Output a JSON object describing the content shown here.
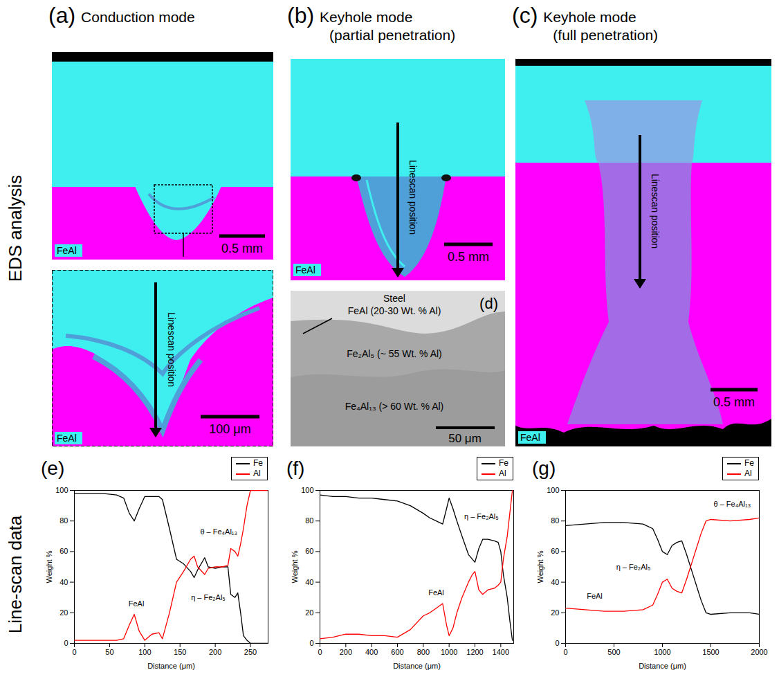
{
  "row_labels": [
    "EDS analysis",
    "Line-scan data"
  ],
  "panels": [
    {
      "letter": "(a)",
      "title": "Conduction mode",
      "scale_bar": "0.5 mm",
      "element_label": "FeAl",
      "inset": {
        "scale_bar": "100 μm",
        "element_label": "FeAl",
        "arrow_label": "Linescan position"
      }
    },
    {
      "letter": "(b)",
      "title": "Keyhole mode",
      "subtitle": "(partial penetration)",
      "scale_bar": "0.5 mm",
      "element_label": "FeAl",
      "arrow_label": "Linescan position"
    },
    {
      "letter": "(c)",
      "title": "Keyhole mode",
      "subtitle": "(full penetration)",
      "scale_bar": "0.5 mm",
      "element_label": "FeAl",
      "arrow_label": "Linescan position"
    },
    {
      "letter": "(d)",
      "scale_bar": "50 μm",
      "labels": [
        "Steel",
        "FeAl (20-30 Wt. % Al)",
        "Fe₂Al₅ (~ 55 Wt. % Al)",
        "Fe₄Al₁₃ (> 60 Wt. % Al)"
      ]
    }
  ],
  "chart_data": [
    {
      "type": "line",
      "panel": "(e)",
      "xlabel": "Distance (μm)",
      "ylabel": "Weight %",
      "xlim": [
        0,
        275
      ],
      "xticks": [
        0,
        50,
        100,
        150,
        200,
        250
      ],
      "ylim": [
        0,
        100
      ],
      "yticks": [
        0,
        20,
        40,
        60,
        80,
        100
      ],
      "legend": "top-right",
      "x": [
        0,
        20,
        40,
        60,
        70,
        78,
        85,
        92,
        100,
        110,
        120,
        125,
        135,
        145,
        155,
        165,
        170,
        175,
        185,
        190,
        200,
        210,
        218,
        222,
        228,
        232,
        236,
        240,
        245,
        250,
        260,
        275
      ],
      "series": [
        {
          "name": "Fe",
          "color": "#000000",
          "values": [
            98,
            98,
            98,
            97,
            95,
            85,
            80,
            88,
            96,
            96,
            96,
            94,
            75,
            55,
            52,
            47,
            43,
            48,
            56,
            50,
            49,
            50,
            50,
            32,
            30,
            33,
            20,
            5,
            2,
            0,
            0,
            0
          ]
        },
        {
          "name": "Al",
          "color": "#ff0000",
          "values": [
            2,
            2,
            2,
            2,
            3,
            12,
            19,
            8,
            2,
            6,
            7,
            3,
            20,
            40,
            47,
            55,
            57,
            50,
            45,
            49,
            50,
            50,
            51,
            62,
            60,
            57,
            65,
            75,
            90,
            100,
            100,
            100
          ]
        }
      ],
      "annotations": [
        {
          "text": "FeAl",
          "x": 88,
          "y": 26
        },
        {
          "text": "η – Fe₂Al₅",
          "x": 190,
          "y": 30
        },
        {
          "text": "θ – Fe₄Al₁₃",
          "x": 205,
          "y": 73
        }
      ]
    },
    {
      "type": "line",
      "panel": "(f)",
      "xlabel": "Distance (μm)",
      "ylabel": "Weight %",
      "xlim": [
        0,
        1500
      ],
      "xticks": [
        0,
        200,
        400,
        600,
        800,
        1000,
        1200,
        1400
      ],
      "ylim": [
        0,
        100
      ],
      "yticks": [
        0,
        20,
        40,
        60,
        80,
        100
      ],
      "legend": "top-right",
      "x": [
        0,
        100,
        200,
        300,
        400,
        500,
        600,
        700,
        800,
        850,
        900,
        950,
        980,
        1000,
        1030,
        1060,
        1100,
        1150,
        1180,
        1200,
        1230,
        1260,
        1300,
        1350,
        1380,
        1400,
        1420,
        1450,
        1470,
        1490
      ],
      "series": [
        {
          "name": "Fe",
          "color": "#000000",
          "values": [
            97,
            96,
            96,
            95,
            95,
            94,
            93,
            90,
            85,
            82,
            80,
            78,
            88,
            95,
            88,
            80,
            70,
            58,
            55,
            53,
            62,
            68,
            68,
            67,
            66,
            60,
            45,
            30,
            15,
            2
          ]
        },
        {
          "name": "Al",
          "color": "#ff0000",
          "values": [
            3,
            4,
            6,
            6,
            5,
            5,
            4,
            9,
            18,
            20,
            23,
            26,
            12,
            5,
            10,
            20,
            30,
            40,
            45,
            47,
            35,
            32,
            35,
            36,
            38,
            40,
            55,
            70,
            85,
            100
          ]
        }
      ],
      "annotations": [
        {
          "text": "FeAl",
          "x": 900,
          "y": 33
        },
        {
          "text": "η – Fe₂Al₅",
          "x": 1250,
          "y": 83
        }
      ]
    },
    {
      "type": "line",
      "panel": "(g)",
      "xlabel": "Distance (μm)",
      "ylabel": "Weight %",
      "xlim": [
        0,
        2000
      ],
      "xticks": [
        0,
        500,
        1000,
        1500,
        2000
      ],
      "ylim": [
        0,
        100
      ],
      "yticks": [
        0,
        20,
        40,
        60,
        80,
        100
      ],
      "legend": "top-right",
      "x": [
        0,
        200,
        400,
        600,
        800,
        900,
        950,
        1000,
        1050,
        1100,
        1150,
        1200,
        1250,
        1300,
        1350,
        1400,
        1450,
        1500,
        1700,
        1900,
        2000
      ],
      "series": [
        {
          "name": "Fe",
          "color": "#000000",
          "values": [
            77,
            78,
            79,
            79,
            78,
            75,
            68,
            60,
            58,
            64,
            66,
            67,
            58,
            48,
            38,
            28,
            20,
            19,
            20,
            20,
            19
          ]
        },
        {
          "name": "Al",
          "color": "#ff0000",
          "values": [
            23,
            22,
            21,
            21,
            22,
            25,
            32,
            40,
            42,
            36,
            34,
            33,
            42,
            52,
            62,
            72,
            80,
            81,
            80,
            81,
            82
          ]
        }
      ],
      "annotations": [
        {
          "text": "FeAl",
          "x": 300,
          "y": 31
        },
        {
          "text": "η – Fe₂Al₅",
          "x": 700,
          "y": 50
        },
        {
          "text": "θ – Fe₄Al₁₃",
          "x": 1720,
          "y": 91
        }
      ]
    }
  ]
}
